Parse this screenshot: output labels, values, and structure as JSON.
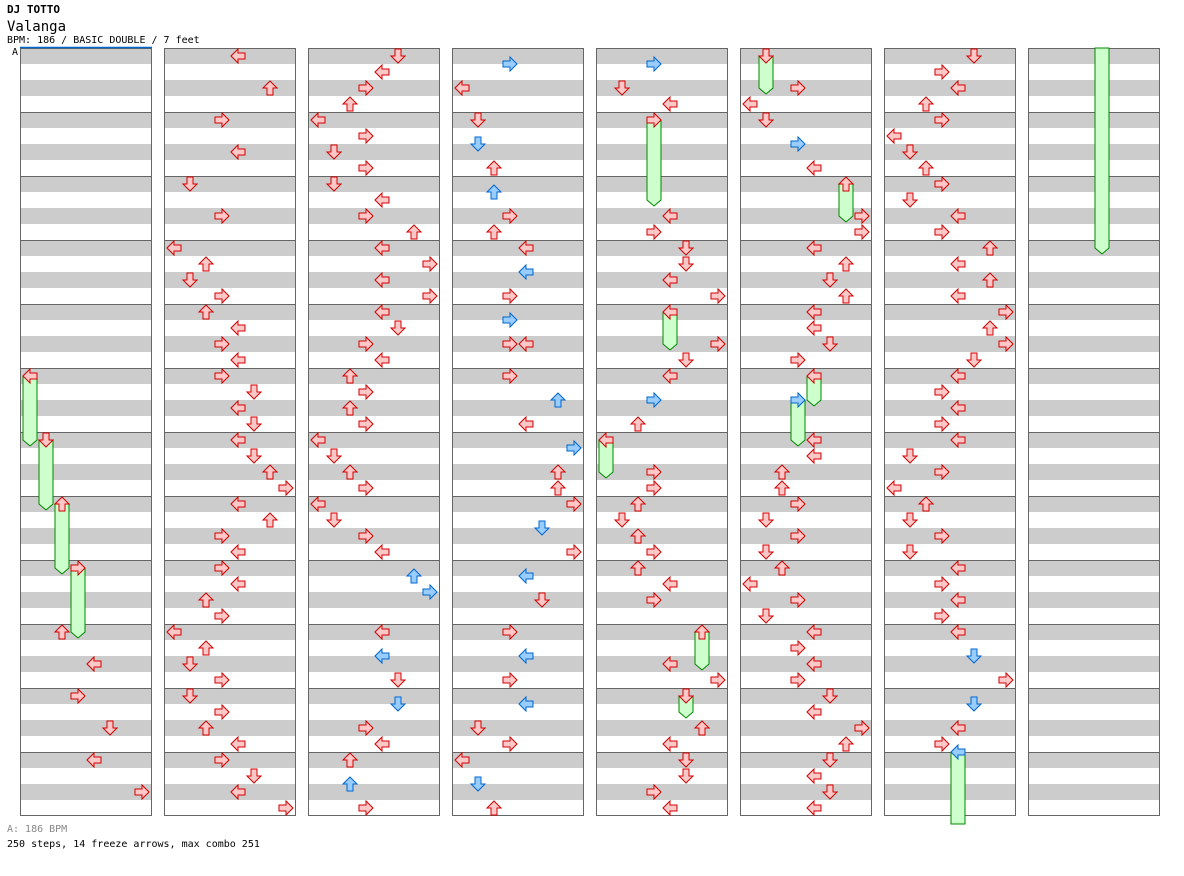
{
  "header": {
    "artist": "DJ TOTTO",
    "title": "Valanga",
    "meta": "BPM: 186 / BASIC DOUBLE / 7 feet",
    "speed_marker": "A"
  },
  "footer": {
    "bpm_line": "A: 186 BPM",
    "stats": "250 steps, 14 freeze arrows, max combo 251"
  },
  "colors": {
    "red_fill": "#ffc8c8",
    "red_stroke": "#d00000",
    "blue_fill": "#99ccff",
    "blue_stroke": "#0066cc",
    "freeze_fill": "#ccffcc",
    "freeze_stroke": "#008800",
    "stripe": "#cccccc",
    "grid": "#666666",
    "speed_line": "#0066cc"
  },
  "chart_data": {
    "type": "table",
    "lanes": [
      "left",
      "down",
      "up",
      "right",
      "left",
      "down",
      "up",
      "right"
    ],
    "columns": 8,
    "measures_per_column": 12,
    "sixteenths_per_column": 96,
    "notes": [
      [
        [
          72,
          2
        ],
        [
          76,
          4
        ],
        [
          80,
          3
        ],
        [
          84,
          5
        ],
        [
          88,
          4
        ],
        [
          92,
          7
        ]
      ],
      [
        [
          0,
          4
        ],
        [
          4,
          6
        ],
        [
          8,
          3
        ],
        [
          12,
          4
        ],
        [
          16,
          1
        ],
        [
          20,
          3
        ],
        [
          24,
          0
        ],
        [
          26,
          2
        ],
        [
          28,
          1
        ],
        [
          30,
          3
        ],
        [
          32,
          2
        ],
        [
          34,
          4
        ],
        [
          36,
          3
        ],
        [
          38,
          4
        ],
        [
          40,
          3
        ],
        [
          42,
          5
        ],
        [
          44,
          4
        ],
        [
          46,
          5
        ],
        [
          48,
          4
        ],
        [
          50,
          5
        ],
        [
          52,
          6
        ],
        [
          54,
          7
        ],
        [
          56,
          4
        ],
        [
          58,
          6
        ],
        [
          60,
          3
        ],
        [
          62,
          4
        ],
        [
          64,
          3
        ],
        [
          66,
          4
        ],
        [
          68,
          2
        ],
        [
          70,
          3
        ],
        [
          72,
          0
        ],
        [
          74,
          2
        ],
        [
          76,
          1
        ],
        [
          78,
          3
        ],
        [
          80,
          1
        ],
        [
          82,
          3
        ],
        [
          84,
          2
        ],
        [
          86,
          4
        ],
        [
          88,
          3
        ],
        [
          90,
          5
        ],
        [
          92,
          4
        ],
        [
          94,
          7
        ]
      ],
      [
        [
          0,
          5
        ],
        [
          2,
          4
        ],
        [
          4,
          3
        ],
        [
          6,
          2
        ],
        [
          8,
          0
        ],
        [
          10,
          3
        ],
        [
          12,
          1
        ],
        [
          14,
          3
        ],
        [
          16,
          1
        ],
        [
          18,
          4
        ],
        [
          20,
          3
        ],
        [
          22,
          6
        ],
        [
          24,
          4
        ],
        [
          26,
          7
        ],
        [
          28,
          4
        ],
        [
          30,
          7
        ],
        [
          32,
          4
        ],
        [
          34,
          5
        ],
        [
          36,
          3
        ],
        [
          38,
          4
        ],
        [
          40,
          2
        ],
        [
          42,
          3
        ],
        [
          44,
          2
        ],
        [
          46,
          3
        ],
        [
          48,
          0
        ],
        [
          50,
          1
        ],
        [
          52,
          2
        ],
        [
          54,
          3
        ],
        [
          56,
          0
        ],
        [
          58,
          1
        ],
        [
          60,
          3
        ],
        [
          62,
          4
        ],
        [
          65,
          6
        ],
        [
          67,
          7
        ],
        [
          72,
          4
        ],
        [
          75,
          4
        ],
        [
          78,
          5
        ],
        [
          81,
          5
        ],
        [
          84,
          3
        ],
        [
          86,
          4
        ],
        [
          88,
          2
        ],
        [
          91,
          2
        ],
        [
          94,
          3
        ]
      ],
      [
        [
          1,
          3
        ],
        [
          4,
          0
        ],
        [
          8,
          1
        ],
        [
          11,
          1
        ],
        [
          14,
          2
        ],
        [
          17,
          2
        ],
        [
          20,
          3
        ],
        [
          22,
          2
        ],
        [
          24,
          4
        ],
        [
          27,
          4
        ],
        [
          30,
          3
        ],
        [
          33,
          3
        ],
        [
          36,
          3
        ],
        [
          36,
          4
        ],
        [
          40,
          3
        ],
        [
          43,
          6
        ],
        [
          46,
          4
        ],
        [
          49,
          7
        ],
        [
          52,
          6
        ],
        [
          54,
          6
        ],
        [
          56,
          7
        ],
        [
          59,
          5
        ],
        [
          62,
          7
        ],
        [
          65,
          4
        ],
        [
          68,
          5
        ],
        [
          72,
          3
        ],
        [
          75,
          4
        ],
        [
          78,
          3
        ],
        [
          81,
          4
        ],
        [
          84,
          1
        ],
        [
          86,
          3
        ],
        [
          88,
          0
        ],
        [
          91,
          1
        ],
        [
          94,
          2
        ]
      ],
      [
        [
          1,
          3
        ],
        [
          4,
          1
        ],
        [
          6,
          4
        ],
        [
          20,
          4
        ],
        [
          22,
          3
        ],
        [
          24,
          5
        ],
        [
          26,
          5
        ],
        [
          28,
          4
        ],
        [
          30,
          7
        ],
        [
          36,
          7
        ],
        [
          38,
          5
        ],
        [
          40,
          4
        ],
        [
          43,
          3
        ],
        [
          46,
          2
        ],
        [
          52,
          3
        ],
        [
          54,
          3
        ],
        [
          56,
          2
        ],
        [
          58,
          1
        ],
        [
          60,
          2
        ],
        [
          62,
          3
        ],
        [
          64,
          2
        ],
        [
          66,
          4
        ],
        [
          68,
          3
        ],
        [
          76,
          4
        ],
        [
          78,
          7
        ],
        [
          84,
          6
        ],
        [
          86,
          4
        ],
        [
          88,
          5
        ],
        [
          90,
          5
        ],
        [
          92,
          3
        ],
        [
          94,
          4
        ]
      ],
      [
        [
          4,
          3
        ],
        [
          6,
          0
        ],
        [
          8,
          1
        ],
        [
          11,
          3
        ],
        [
          14,
          4
        ],
        [
          20,
          7
        ],
        [
          22,
          7
        ],
        [
          24,
          4
        ],
        [
          26,
          6
        ],
        [
          28,
          5
        ],
        [
          30,
          6
        ],
        [
          32,
          4
        ],
        [
          34,
          4
        ],
        [
          36,
          5
        ],
        [
          38,
          3
        ],
        [
          48,
          4
        ],
        [
          50,
          4
        ],
        [
          52,
          2
        ],
        [
          54,
          2
        ],
        [
          56,
          3
        ],
        [
          58,
          1
        ],
        [
          60,
          3
        ],
        [
          62,
          1
        ],
        [
          64,
          2
        ],
        [
          66,
          0
        ],
        [
          68,
          3
        ],
        [
          70,
          1
        ],
        [
          72,
          4
        ],
        [
          74,
          3
        ],
        [
          76,
          4
        ],
        [
          78,
          3
        ],
        [
          80,
          5
        ],
        [
          82,
          4
        ],
        [
          84,
          7
        ],
        [
          86,
          6
        ],
        [
          88,
          5
        ],
        [
          90,
          4
        ],
        [
          92,
          5
        ],
        [
          94,
          4
        ]
      ],
      [
        [
          0,
          5
        ],
        [
          2,
          3
        ],
        [
          4,
          4
        ],
        [
          6,
          2
        ],
        [
          8,
          3
        ],
        [
          10,
          0
        ],
        [
          12,
          1
        ],
        [
          14,
          2
        ],
        [
          16,
          3
        ],
        [
          18,
          1
        ],
        [
          20,
          4
        ],
        [
          22,
          3
        ],
        [
          24,
          6
        ],
        [
          26,
          4
        ],
        [
          28,
          6
        ],
        [
          30,
          4
        ],
        [
          32,
          7
        ],
        [
          34,
          6
        ],
        [
          36,
          7
        ],
        [
          38,
          5
        ],
        [
          40,
          4
        ],
        [
          42,
          3
        ],
        [
          44,
          4
        ],
        [
          46,
          3
        ],
        [
          48,
          4
        ],
        [
          50,
          1
        ],
        [
          52,
          3
        ],
        [
          54,
          0
        ],
        [
          56,
          2
        ],
        [
          58,
          1
        ],
        [
          60,
          3
        ],
        [
          62,
          1
        ],
        [
          64,
          4
        ],
        [
          66,
          3
        ],
        [
          68,
          4
        ],
        [
          70,
          3
        ],
        [
          72,
          4
        ],
        [
          75,
          5
        ],
        [
          78,
          7
        ],
        [
          81,
          5
        ],
        [
          84,
          4
        ],
        [
          86,
          3
        ]
      ],
      []
    ],
    "freezes": [
      [
        [
          40,
          0,
          48
        ],
        [
          48,
          1,
          56
        ],
        [
          56,
          2,
          64
        ],
        [
          64,
          3,
          72
        ]
      ],
      [],
      [],
      [],
      [
        [
          8,
          3,
          18
        ],
        [
          32,
          4,
          36
        ],
        [
          48,
          0,
          52
        ],
        [
          72,
          6,
          76
        ],
        [
          80,
          5,
          82
        ]
      ],
      [
        [
          0,
          1,
          4
        ],
        [
          16,
          6,
          20
        ],
        [
          40,
          4,
          43
        ],
        [
          43,
          3,
          48
        ]
      ],
      [
        [
          87,
          4,
          120
        ]
      ],
      []
    ]
  }
}
